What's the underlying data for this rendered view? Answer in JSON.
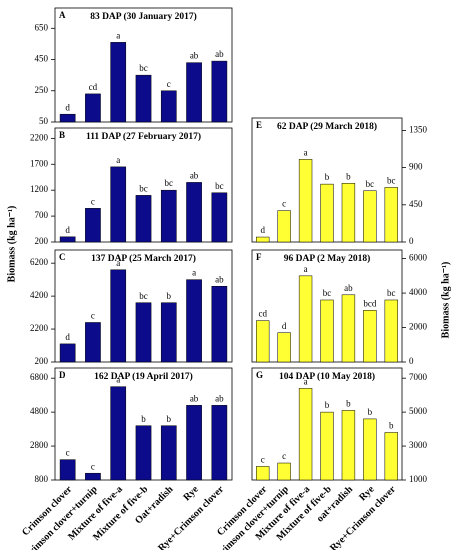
{
  "chart_data": [
    {
      "type": "bar",
      "panel": "A",
      "title": "83 DAP (30 January 2017)",
      "values": [
        100,
        230,
        560,
        350,
        250,
        430,
        440
      ],
      "letters": [
        "d",
        "cd",
        "a",
        "bc",
        "c",
        "ab",
        "ab"
      ],
      "color": "#0b0b8c",
      "ylim": [
        50,
        780
      ],
      "yticks": [
        50,
        250,
        450,
        650
      ],
      "axis_side": "left"
    },
    {
      "type": "bar",
      "panel": "B",
      "title": "111 DAP (27 February 2017)",
      "values": [
        300,
        850,
        1650,
        1100,
        1200,
        1350,
        1150
      ],
      "letters": [
        "d",
        "c",
        "a",
        "bc",
        "bc",
        "ab",
        "bc"
      ],
      "color": "#0b0b8c",
      "ylim": [
        200,
        2400
      ],
      "yticks": [
        200,
        700,
        1200,
        1700,
        2200
      ],
      "axis_side": "left"
    },
    {
      "type": "bar",
      "panel": "C",
      "title": "137 DAP (25 March 2017)",
      "values": [
        1300,
        2600,
        5800,
        3800,
        3800,
        5200,
        4800
      ],
      "letters": [
        "d",
        "c",
        "a",
        "bc",
        "b",
        "a",
        "ab"
      ],
      "color": "#0b0b8c",
      "ylim": [
        200,
        7000
      ],
      "yticks": [
        200,
        2200,
        4200,
        6200
      ],
      "axis_side": "left",
      "y_label": "Biomass (kg ha⁻¹)"
    },
    {
      "type": "bar",
      "panel": "D",
      "title": "162 DAP (19 April 2017)",
      "categories": [
        "Crimson clover",
        "Crimson clover+turnip",
        "Mixture of five-a",
        "Mixture of five-b",
        "Oat+radish",
        "Rye",
        "Rye+Crimson clover"
      ],
      "values": [
        2000,
        1200,
        6300,
        4000,
        4000,
        5200,
        5200
      ],
      "letters": [
        "c",
        "c",
        "a",
        "b",
        "b",
        "ab",
        "ab"
      ],
      "color": "#0b0b8c",
      "ylim": [
        800,
        7400
      ],
      "yticks": [
        800,
        2800,
        4800,
        6800
      ],
      "axis_side": "left"
    },
    {
      "type": "bar",
      "panel": "E",
      "title": "62 DAP (29 March 2018)",
      "values": [
        60,
        380,
        1000,
        700,
        710,
        620,
        660
      ],
      "letters": [
        "d",
        "c",
        "a",
        "b",
        "b",
        "bc",
        "bc"
      ],
      "color": "#ffff33",
      "ylim": [
        0,
        1500
      ],
      "yticks": [
        0,
        450,
        900,
        1350
      ],
      "axis_side": "right"
    },
    {
      "type": "bar",
      "panel": "F",
      "title": "96 DAP (2 May 2018)",
      "values": [
        2400,
        1700,
        5000,
        3600,
        3900,
        3000,
        3600
      ],
      "letters": [
        "cd",
        "d",
        "a",
        "bc",
        "ab",
        "bcd",
        "bc"
      ],
      "color": "#ffff33",
      "ylim": [
        0,
        6500
      ],
      "yticks": [
        0,
        2000,
        4000,
        6000
      ],
      "axis_side": "right",
      "y_label": "Biomass (kg ha⁻¹)"
    },
    {
      "type": "bar",
      "panel": "G",
      "title": "104 DAP (10 May 2018)",
      "categories": [
        "Crimson clover",
        "Crimson clover+turnip",
        "Mixture of five-a",
        "Mixture of five-b",
        "oat+radish",
        "Rye",
        "Rye+Crimson clover"
      ],
      "values": [
        1800,
        2000,
        6400,
        5000,
        5100,
        4600,
        3800
      ],
      "letters": [
        "c",
        "c",
        "a",
        "b",
        "b",
        "b",
        "b"
      ],
      "color": "#ffff33",
      "ylim": [
        1000,
        7600
      ],
      "yticks": [
        1000,
        3000,
        5000,
        7000
      ],
      "axis_side": "right"
    }
  ]
}
